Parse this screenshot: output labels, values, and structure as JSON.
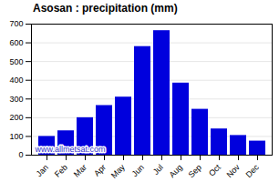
{
  "chart_data": {
    "type": "bar",
    "title": "Asosan : precipitation (mm)",
    "categories": [
      "Jan",
      "Feb",
      "Mar",
      "Apr",
      "May",
      "Jun",
      "Jul",
      "Aug",
      "Sep",
      "Oct",
      "Nov",
      "Dec"
    ],
    "values": [
      100,
      130,
      200,
      265,
      310,
      580,
      665,
      385,
      245,
      140,
      105,
      75
    ],
    "color": "#0000dd",
    "ylim": [
      0,
      700
    ],
    "yticks": [
      0,
      100,
      200,
      300,
      400,
      500,
      600,
      700
    ],
    "grid": true,
    "annotations": [
      "www.allmetsat.com"
    ]
  }
}
